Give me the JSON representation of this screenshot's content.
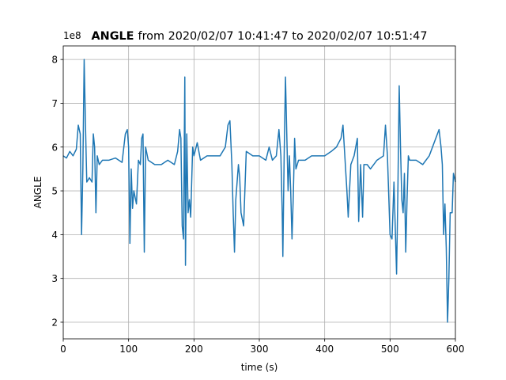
{
  "chart_data": {
    "type": "line",
    "title_bold": "ANGLE",
    "title_rest": "from 2020/02/07 10:41:47 to 2020/02/07 10:51:47",
    "offset_text": "1e8",
    "x_label": "time (s)",
    "y_label": "ANGLE",
    "xlim": [
      0,
      600
    ],
    "ylim": [
      1.62,
      8.31
    ],
    "xticks": [
      0,
      100,
      200,
      300,
      400,
      500,
      600
    ],
    "yticks": [
      2,
      3,
      4,
      5,
      6,
      7,
      8
    ],
    "grid": true,
    "series": [
      {
        "color": "#1f77b4",
        "x": [
          0,
          5,
          10,
          15,
          20,
          23,
          26,
          28,
          30,
          32,
          34,
          36,
          40,
          44,
          46,
          48,
          50,
          52,
          55,
          60,
          70,
          80,
          90,
          95,
          98,
          100,
          102,
          104,
          106,
          108,
          112,
          115,
          118,
          120,
          122,
          124,
          126,
          130,
          140,
          150,
          160,
          170,
          175,
          178,
          180,
          182,
          184,
          186,
          187,
          189,
          191,
          193,
          195,
          198,
          200,
          205,
          210,
          220,
          230,
          240,
          248,
          252,
          255,
          258,
          260,
          262,
          264,
          268,
          270,
          272,
          276,
          280,
          290,
          300,
          310,
          315,
          320,
          326,
          330,
          333,
          335,
          336,
          338,
          340,
          342,
          344,
          346,
          348,
          350,
          352,
          354,
          356,
          360,
          370,
          380,
          390,
          400,
          410,
          418,
          425,
          428,
          432,
          434,
          436,
          438,
          440,
          445,
          450,
          452,
          455,
          458,
          460,
          465,
          470,
          480,
          490,
          493,
          496,
          500,
          503,
          506,
          510,
          512,
          514,
          516,
          518,
          520,
          522,
          524,
          526,
          528,
          530,
          540,
          550,
          560,
          575,
          578,
          580,
          582,
          584,
          586,
          588,
          590,
          592,
          595,
          597,
          600
        ],
        "values": [
          5.8,
          5.75,
          5.9,
          5.8,
          5.95,
          6.5,
          6.3,
          4.0,
          5.5,
          8.0,
          6.5,
          5.2,
          5.3,
          5.2,
          6.3,
          6.0,
          4.5,
          5.8,
          5.6,
          5.7,
          5.7,
          5.75,
          5.65,
          6.3,
          6.4,
          6.0,
          3.8,
          5.5,
          4.6,
          5.0,
          4.7,
          5.7,
          5.6,
          6.2,
          6.3,
          3.6,
          6.0,
          5.7,
          5.6,
          5.6,
          5.7,
          5.6,
          5.9,
          6.4,
          6.2,
          4.2,
          3.9,
          7.6,
          3.3,
          6.3,
          4.5,
          4.8,
          4.4,
          6.0,
          5.8,
          6.1,
          5.7,
          5.8,
          5.8,
          5.8,
          6.0,
          6.5,
          6.6,
          5.6,
          4.5,
          3.6,
          4.8,
          5.6,
          5.3,
          4.5,
          4.2,
          5.9,
          5.8,
          5.8,
          5.7,
          6.0,
          5.7,
          5.8,
          6.4,
          5.8,
          4.5,
          3.5,
          5.8,
          7.6,
          6.3,
          5.0,
          5.8,
          5.0,
          3.9,
          4.9,
          6.2,
          5.5,
          5.7,
          5.7,
          5.8,
          5.8,
          5.8,
          5.9,
          6.0,
          6.2,
          6.5,
          5.5,
          5.0,
          4.4,
          5.0,
          5.6,
          5.8,
          6.2,
          4.3,
          5.6,
          4.4,
          5.6,
          5.6,
          5.5,
          5.7,
          5.8,
          6.5,
          5.8,
          4.0,
          3.9,
          5.2,
          3.1,
          5.0,
          7.4,
          6.0,
          4.8,
          4.5,
          5.4,
          3.6,
          4.8,
          5.8,
          5.7,
          5.7,
          5.6,
          5.8,
          6.4,
          6.0,
          5.6,
          4.0,
          4.7,
          3.7,
          2.0,
          3.0,
          4.5,
          4.5,
          5.4,
          5.2
        ]
      }
    ]
  }
}
